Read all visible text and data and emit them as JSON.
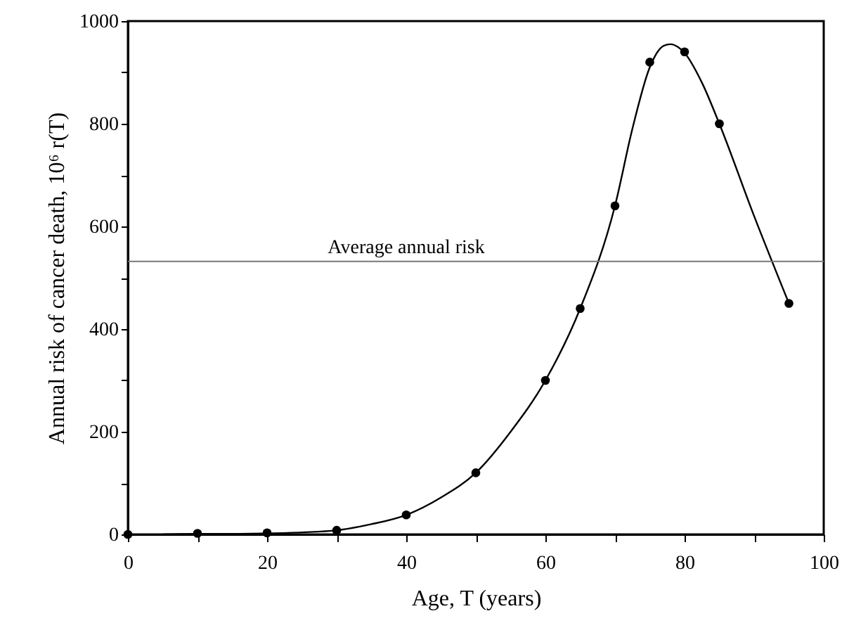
{
  "chart_data": {
    "type": "scatter",
    "xlabel": "Age, T (years)",
    "ylabel": "Annual risk of cancer death, 10⁶ r(T)",
    "xlim": [
      0,
      100
    ],
    "ylim": [
      0,
      1000
    ],
    "xticks": [
      0,
      {
        "value": 10,
        "label": null
      },
      20,
      {
        "value": 30,
        "label": null
      },
      40,
      {
        "value": 50,
        "label": null
      },
      60,
      {
        "value": 70,
        "label": null
      },
      80,
      {
        "value": 90,
        "label": null
      },
      100
    ],
    "yticks": [
      0,
      {
        "value": 100,
        "label": null
      },
      200,
      {
        "value": 300,
        "label": null
      },
      400,
      {
        "value": 500,
        "label": null
      },
      600,
      {
        "value": 700,
        "label": null
      },
      800,
      {
        "value": 900,
        "label": null
      },
      1000
    ],
    "series": [
      {
        "type": "line",
        "color": "#000000",
        "x": [
          5,
          10,
          15,
          20,
          25,
          30,
          35,
          40,
          45,
          50,
          55,
          60,
          65,
          70,
          72.5,
          75,
          77,
          78,
          79,
          80,
          82.5,
          85,
          90,
          95
        ],
        "values": [
          0,
          1,
          1,
          2,
          4,
          8,
          20,
          38,
          72,
          120,
          200,
          300,
          440,
          640,
          790,
          910,
          952,
          955,
          950,
          938,
          880,
          800,
          620,
          450
        ]
      },
      {
        "color": "#000000",
        "x": [
          0,
          10,
          20,
          30,
          40,
          50,
          60,
          65,
          70,
          75,
          80,
          85,
          95
        ],
        "values": [
          0,
          2,
          3,
          8,
          38,
          120,
          300,
          440,
          640,
          920,
          940,
          800,
          450
        ]
      }
    ],
    "ref_lines": [
      {
        "axis": "y",
        "value": 532,
        "label": "Average annual risk",
        "color": "#777777"
      }
    ]
  }
}
